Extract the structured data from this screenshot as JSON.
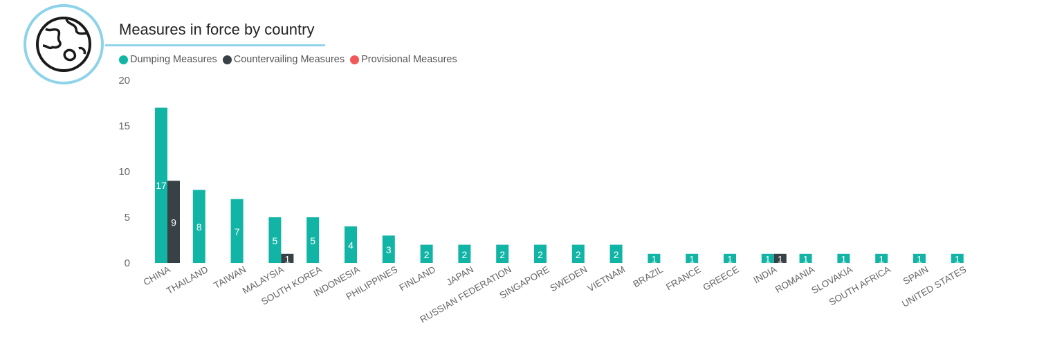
{
  "chart_data": {
    "type": "bar",
    "title": "Measures in force by country",
    "xlabel": "",
    "ylabel": "",
    "ylim": [
      0,
      20
    ],
    "yticks": [
      0,
      5,
      10,
      15,
      20
    ],
    "grid": false,
    "legend_position": "top-left",
    "categories": [
      "CHINA",
      "THAILAND",
      "TAIWAN",
      "MALAYSIA",
      "SOUTH KOREA",
      "INDONESIA",
      "PHILIPPINES",
      "FINLAND",
      "JAPAN",
      "RUSSIAN FEDERATION",
      "SINGAPORE",
      "SWEDEN",
      "VIETNAM",
      "BRAZIL",
      "FRANCE",
      "GREECE",
      "INDIA",
      "ROMANIA",
      "SLOVAKIA",
      "SOUTH AFRICA",
      "SPAIN",
      "UNITED STATES"
    ],
    "series": [
      {
        "name": "Dumping Measures",
        "color": "#12b5a5",
        "values": [
          17,
          8,
          7,
          5,
          5,
          4,
          3,
          2,
          2,
          2,
          2,
          2,
          2,
          1,
          1,
          1,
          1,
          1,
          1,
          1,
          1,
          1
        ]
      },
      {
        "name": "Countervailing Measures",
        "color": "#374146",
        "values": [
          9,
          0,
          0,
          1,
          0,
          0,
          0,
          0,
          0,
          0,
          0,
          0,
          0,
          0,
          0,
          0,
          1,
          0,
          0,
          0,
          0,
          0
        ]
      },
      {
        "name": "Provisional Measures",
        "color": "#f0585a",
        "values": [
          0,
          0,
          0,
          0,
          0,
          0,
          0,
          0,
          0,
          0,
          0,
          0,
          0,
          0,
          0,
          0,
          0,
          0,
          0,
          0,
          0,
          0
        ]
      }
    ]
  },
  "badge": {
    "icon": "globe-icon",
    "accent": "#8ed3ea"
  }
}
